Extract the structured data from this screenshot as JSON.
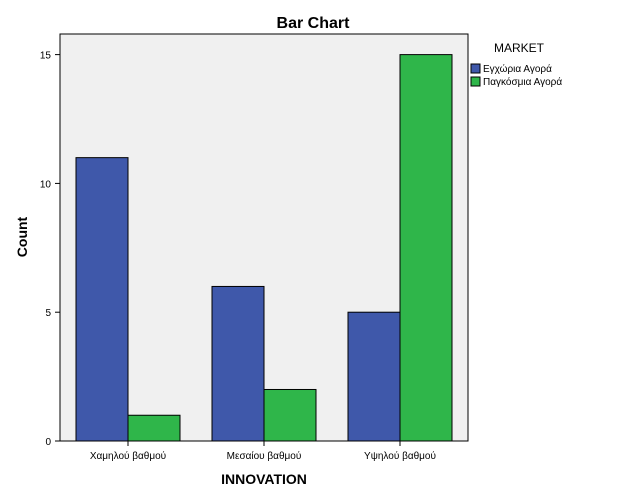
{
  "chart_data": {
    "type": "bar",
    "title": "Bar Chart",
    "xlabel": "INNOVATION",
    "ylabel": "Count",
    "categories": [
      "Χαμηλού βαθμού",
      "Μεσαίου βαθμού",
      "Υψηλού βαθμού"
    ],
    "series": [
      {
        "name": "Εγχώρια Αγορά",
        "values": [
          11,
          6,
          5
        ],
        "color": "#3f58aa"
      },
      {
        "name": "Παγκόσμια Αγορά",
        "values": [
          1,
          2,
          15
        ],
        "color": "#2fb64a"
      }
    ],
    "ylim": [
      0,
      15.8
    ],
    "yticks": [
      "0",
      "5",
      "10",
      "15"
    ],
    "legend": {
      "title": "MARKET",
      "placement": "right"
    },
    "grid": false,
    "plot_background": "#f0f0f0"
  }
}
